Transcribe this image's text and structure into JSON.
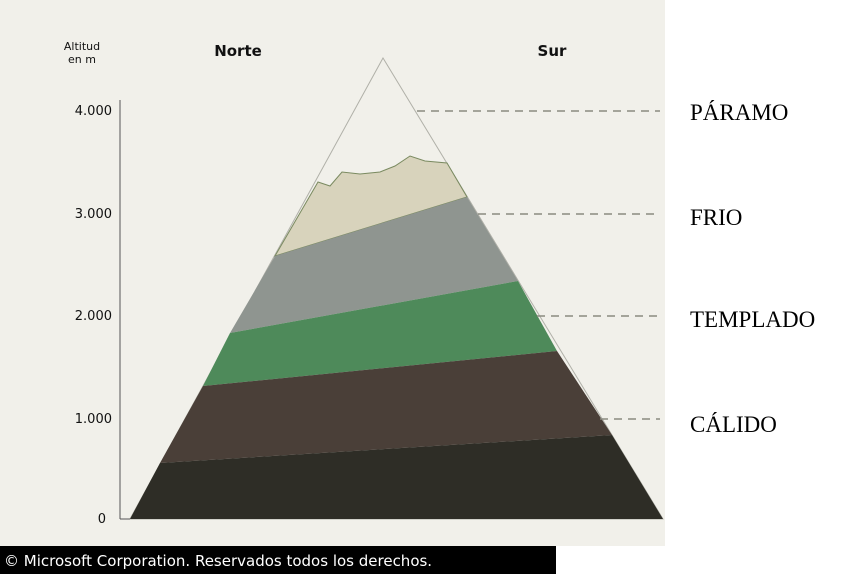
{
  "axis_label": [
    "Altitud",
    "en m"
  ],
  "ticks": [
    "4.000",
    "3.000",
    "2.000",
    "1.000",
    "0"
  ],
  "sides": {
    "north": "Norte",
    "south": "Sur"
  },
  "zones": [
    "PÁRAMO",
    "FRIO",
    "TEMPLADO",
    "CÁLIDO"
  ],
  "copyright": "© Microsoft Corporation. Reservados todos los derechos."
}
